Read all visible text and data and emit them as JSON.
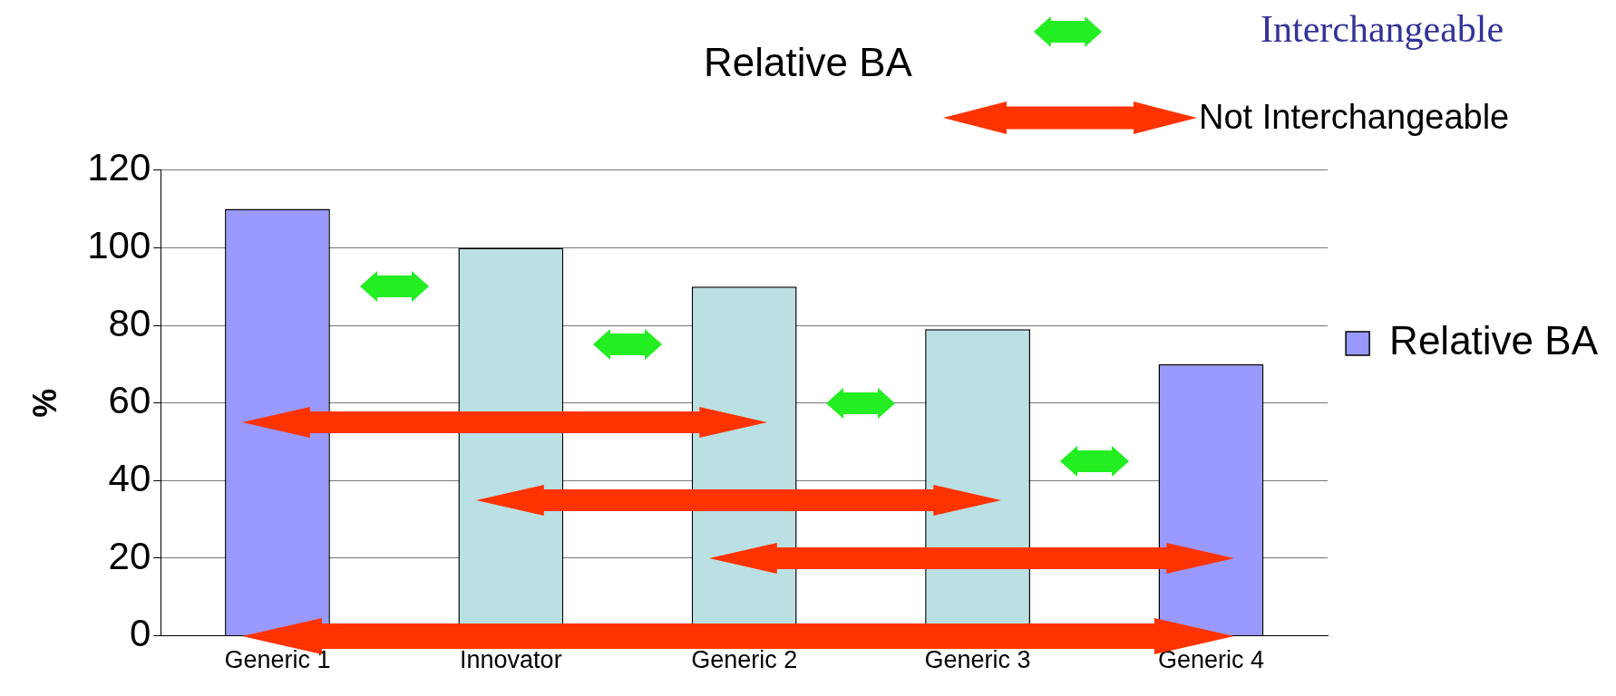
{
  "chart_data": {
    "type": "bar",
    "title": "Relative BA",
    "ylabel": "%",
    "categories": [
      "Generic 1",
      "Innovator",
      "Generic 2",
      "Generic 3",
      "Generic 4"
    ],
    "series": [
      {
        "name": "Relative BA",
        "color": "#9999ff",
        "colors": [
          "#9999ff",
          "#bbe0e3",
          "#bbe0e3",
          "#bbe0e3",
          "#9999ff"
        ],
        "values": [
          110,
          100,
          90,
          79,
          70
        ]
      }
    ],
    "ylim": [
      0,
      120
    ],
    "yticks": [
      0,
      20,
      40,
      60,
      80,
      100,
      120
    ],
    "grid": "y",
    "legend": "right",
    "annotations": [
      "Interchangeable",
      "Not Interchangeable"
    ]
  }
}
